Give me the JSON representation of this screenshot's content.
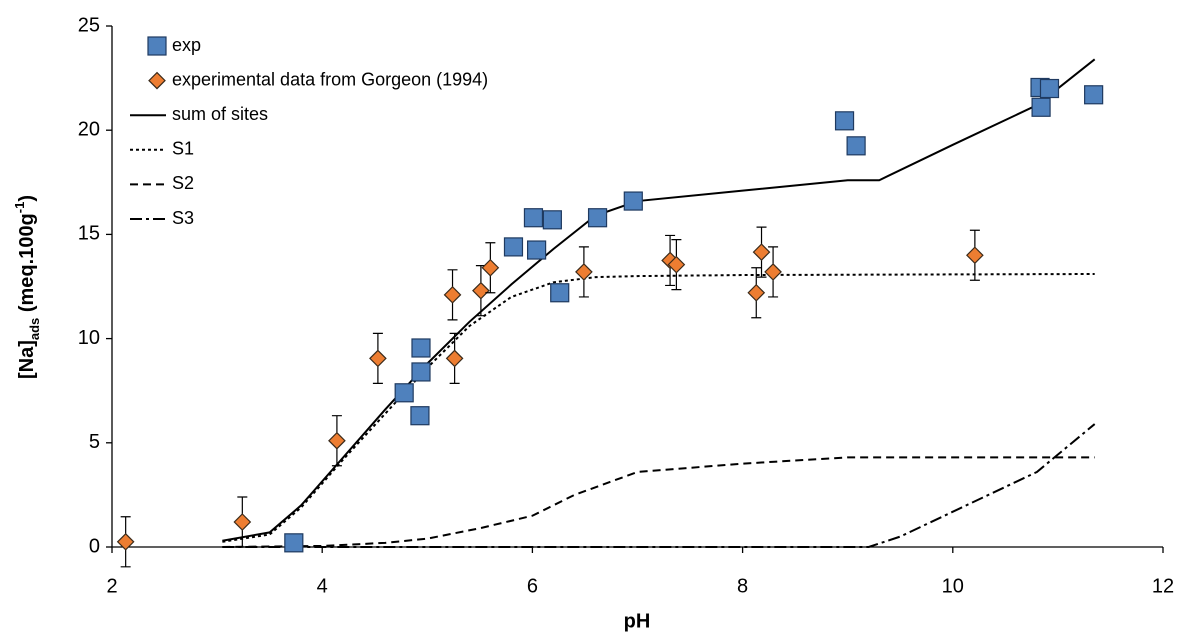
{
  "chart_data": {
    "type": "scatter",
    "xlabel": "pH",
    "ylabel": [
      "[Na]",
      "ads",
      " (meq.100g",
      "-1",
      ")"
    ],
    "xlim": [
      2,
      12
    ],
    "xticks": [
      2,
      4,
      6,
      8,
      10,
      12
    ],
    "ylim": [
      0,
      25
    ],
    "yticks": [
      0,
      5,
      10,
      15,
      20,
      25
    ],
    "grid": false,
    "legend": "upper left",
    "series": [
      {
        "name": "exp",
        "marker": "square",
        "color": "#4f81bd",
        "edge": "#1f3a60",
        "x": [
          3.73,
          4.78,
          4.94,
          4.94,
          4.93,
          5.82,
          6.01,
          6.04,
          6.19,
          6.26,
          6.62,
          6.96,
          8.97,
          9.08,
          10.83,
          10.84,
          10.92,
          11.34
        ],
        "values": [
          0.2,
          7.4,
          8.4,
          9.55,
          6.3,
          14.4,
          15.8,
          14.25,
          15.7,
          12.2,
          15.8,
          16.6,
          20.45,
          19.25,
          22.05,
          21.1,
          22.0,
          21.7
        ]
      },
      {
        "name": "experimental data from Gorgeon (1994)",
        "marker": "diamond",
        "color": "#ed7d31",
        "edge": "#3a2a1a",
        "x": [
          2.13,
          3.24,
          4.14,
          4.53,
          5.24,
          5.26,
          5.51,
          5.6,
          6.49,
          7.31,
          7.37,
          8.13,
          8.18,
          8.29,
          10.21
        ],
        "values": [
          0.25,
          1.2,
          5.1,
          9.05,
          12.1,
          9.05,
          12.3,
          13.4,
          13.2,
          13.75,
          13.55,
          12.2,
          14.15,
          13.2,
          14.0
        ],
        "errors": [
          1.2,
          1.2,
          1.2,
          1.2,
          1.2,
          1.2,
          1.2,
          1.2,
          1.2,
          1.2,
          1.2,
          1.2,
          1.2,
          1.2,
          1.2
        ]
      },
      {
        "name": "sum of sites",
        "marker": "line",
        "color": "#000000",
        "dash": "none",
        "x": [
          3.05,
          3.5,
          3.8,
          4.2,
          4.6,
          5.0,
          5.4,
          5.8,
          6.2,
          6.6,
          7.0,
          8.0,
          9.0,
          9.3,
          10.0,
          10.8,
          11.35
        ],
        "values": [
          0.3,
          0.7,
          2.0,
          4.3,
          6.6,
          8.8,
          10.8,
          12.6,
          14.3,
          15.9,
          16.6,
          17.1,
          17.6,
          17.6,
          19.3,
          21.2,
          23.4
        ]
      },
      {
        "name": "S1",
        "marker": "line",
        "color": "#000000",
        "dash": "3,3",
        "x": [
          3.05,
          3.5,
          3.8,
          4.2,
          4.6,
          5.0,
          5.4,
          5.8,
          6.2,
          6.6,
          7.0,
          8.0,
          11.35
        ],
        "values": [
          0.25,
          0.6,
          1.9,
          4.2,
          6.4,
          8.6,
          10.6,
          12.0,
          12.7,
          12.95,
          13.0,
          13.05,
          13.1
        ]
      },
      {
        "name": "S2",
        "marker": "line",
        "color": "#000000",
        "dash": "8,5",
        "x": [
          3.05,
          4.0,
          4.6,
          5.0,
          5.5,
          6.0,
          6.4,
          7.0,
          8.0,
          9.0,
          10.0,
          11.35
        ],
        "values": [
          0.0,
          0.05,
          0.2,
          0.4,
          0.9,
          1.5,
          2.5,
          3.6,
          4.0,
          4.3,
          4.3,
          4.3
        ]
      },
      {
        "name": "S3",
        "marker": "line",
        "color": "#000000",
        "dash": "12,4,3,4",
        "x": [
          3.05,
          9.2,
          9.5,
          10.8,
          11.35
        ],
        "values": [
          0.0,
          0.0,
          0.5,
          3.6,
          5.9
        ]
      }
    ]
  }
}
